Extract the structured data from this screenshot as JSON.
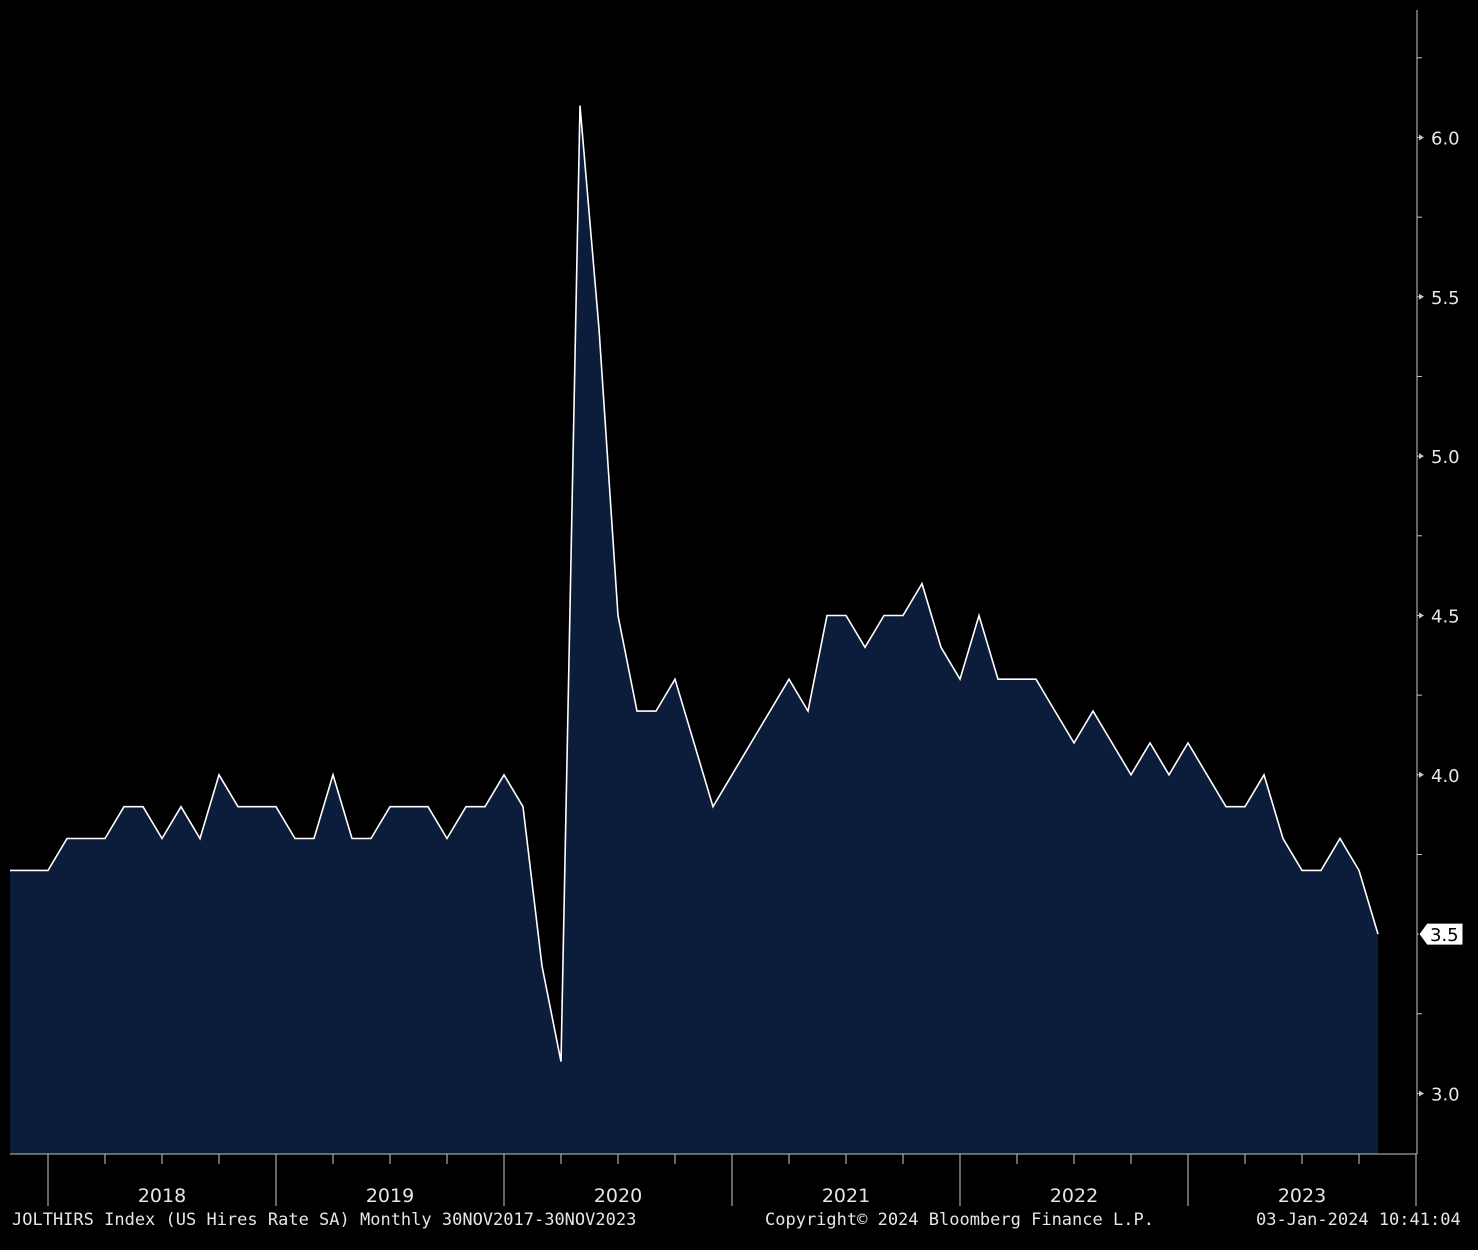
{
  "footer": {
    "series_desc": "JOLTHIRS Index (US Hires Rate SA)  Monthly 30NOV2017-30NOV2023",
    "copyright": "Copyright© 2024 Bloomberg Finance L.P.",
    "timestamp": "03-Jan-2024 10:41:04"
  },
  "chart_data": {
    "type": "area",
    "title": "",
    "xlabel": "",
    "ylabel": "",
    "x_start": "2017-11",
    "x_end": "2023-11",
    "frequency": "monthly",
    "x_tick_labels": [
      "2018",
      "2019",
      "2020",
      "2021",
      "2022",
      "2023"
    ],
    "y_ticks": [
      "3.0",
      "4.0",
      "4.5",
      "5.0",
      "5.5",
      "6.0"
    ],
    "ylim": [
      2.81,
      6.4
    ],
    "last_value_label": "3.5",
    "grid": false,
    "axis_side": "right",
    "colors": {
      "background": "#000000",
      "fill": "#0c1d3c",
      "line": "#ffffff",
      "axis": "#c8c8c8",
      "text": "#e6e6e6"
    },
    "series": [
      {
        "values": [
          3.7,
          3.7,
          3.7,
          3.8,
          3.8,
          3.8,
          3.9,
          3.9,
          3.8,
          3.9,
          3.8,
          4.0,
          3.9,
          3.9,
          3.9,
          3.8,
          3.8,
          4.0,
          3.8,
          3.8,
          3.9,
          3.9,
          3.9,
          3.8,
          3.9,
          3.9,
          4.0,
          3.9,
          3.4,
          3.1,
          6.1,
          5.4,
          4.5,
          4.2,
          4.2,
          4.3,
          4.1,
          3.9,
          4.0,
          4.1,
          4.2,
          4.3,
          4.2,
          4.5,
          4.5,
          4.4,
          4.5,
          4.5,
          4.6,
          4.4,
          4.3,
          4.5,
          4.3,
          4.3,
          4.3,
          4.2,
          4.1,
          4.2,
          4.1,
          4.0,
          4.1,
          4.0,
          4.1,
          4.0,
          3.9,
          3.9,
          4.0,
          3.8,
          3.7,
          3.7,
          3.8,
          3.7,
          3.5
        ]
      }
    ]
  }
}
